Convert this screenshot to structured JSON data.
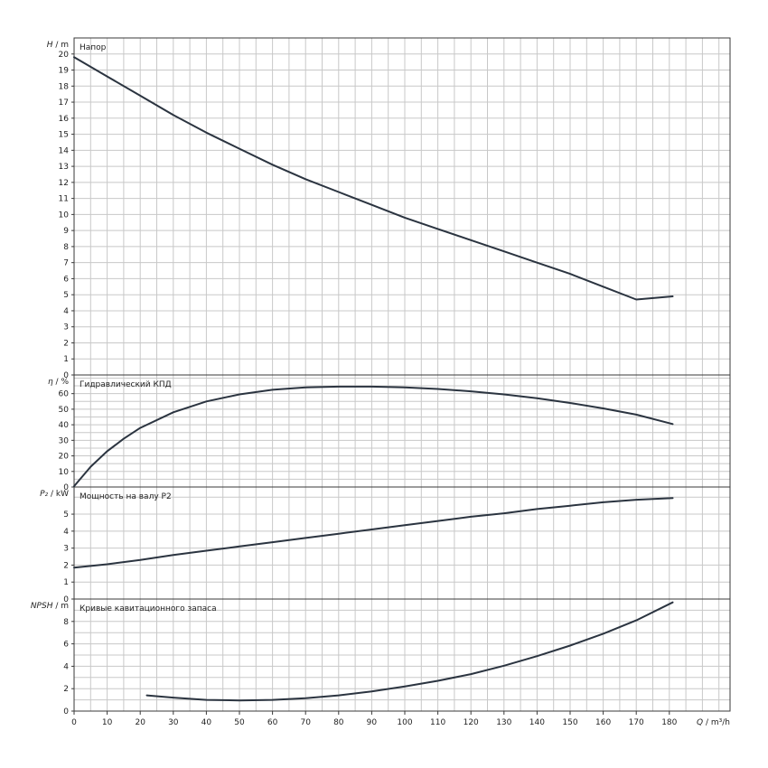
{
  "chart_data": {
    "type": "line",
    "x_axis": {
      "label_var": "Q",
      "label_unit": " / m³/h",
      "range": [
        0,
        180
      ],
      "ticks": [
        0,
        10,
        20,
        30,
        40,
        50,
        60,
        70,
        80,
        90,
        100,
        110,
        120,
        130,
        140,
        150,
        160,
        170,
        180
      ]
    },
    "panels": [
      {
        "id": "head",
        "title": "Напор",
        "ylabel_var": "H",
        "ylabel_unit": " / m",
        "ylim": [
          0,
          21
        ],
        "yticks": [
          0,
          1,
          2,
          3,
          4,
          5,
          6,
          7,
          8,
          9,
          10,
          11,
          12,
          13,
          14,
          15,
          16,
          17,
          18,
          19,
          20
        ],
        "series": [
          {
            "x": [
              0,
              10,
              20,
              30,
              40,
              50,
              60,
              70,
              80,
              90,
              100,
              110,
              120,
              130,
              140,
              150,
              160,
              170,
              181
            ],
            "y": [
              19.8,
              18.6,
              17.4,
              16.2,
              15.1,
              14.1,
              13.1,
              12.2,
              11.4,
              10.6,
              9.8,
              9.1,
              8.4,
              7.7,
              7.0,
              6.3,
              5.5,
              4.7,
              4.9
            ]
          }
        ]
      },
      {
        "id": "efficiency",
        "title": "Гидравлический КПД",
        "ylabel_var": "η",
        "ylabel_unit": " / %",
        "ylim": [
          0,
          72
        ],
        "yticks": [
          0,
          10,
          20,
          30,
          40,
          50,
          60
        ],
        "series": [
          {
            "x": [
              0,
              5,
              10,
              15,
              20,
              30,
              40,
              50,
              60,
              70,
              80,
              90,
              100,
              110,
              120,
              130,
              140,
              150,
              160,
              170,
              181
            ],
            "y": [
              0.5,
              13,
              23,
              31,
              38,
              48,
              55,
              59.5,
              62.5,
              64,
              64.5,
              64.5,
              64,
              63,
              61.5,
              59.5,
              57,
              54,
              50.5,
              46.5,
              40.5
            ]
          }
        ]
      },
      {
        "id": "power",
        "title": "Мощность на валу P2",
        "ylabel_var": "P₂",
        "ylabel_unit": " / kW",
        "ylim": [
          0,
          6.6
        ],
        "yticks": [
          0,
          1,
          2,
          3,
          4,
          5
        ],
        "series": [
          {
            "x": [
              0,
              10,
              20,
              30,
              40,
              50,
              60,
              70,
              80,
              90,
              100,
              110,
              120,
              130,
              140,
              150,
              160,
              170,
              181
            ],
            "y": [
              1.85,
              2.05,
              2.3,
              2.6,
              2.85,
              3.1,
              3.35,
              3.6,
              3.85,
              4.1,
              4.35,
              4.6,
              4.85,
              5.05,
              5.3,
              5.5,
              5.7,
              5.85,
              5.95
            ]
          }
        ]
      },
      {
        "id": "npsh",
        "title": "Кривые кавитационного запаса",
        "ylabel_var": "NPSH",
        "ylabel_unit": " / m",
        "ylim": [
          0,
          10
        ],
        "yticks": [
          0,
          2,
          4,
          6,
          8
        ],
        "series": [
          {
            "x": [
              22,
              30,
              40,
              50,
              60,
              70,
              80,
              90,
              100,
              110,
              120,
              130,
              140,
              150,
              160,
              170,
              181
            ],
            "y": [
              1.4,
              1.2,
              1.0,
              0.95,
              1.0,
              1.15,
              1.4,
              1.75,
              2.2,
              2.7,
              3.3,
              4.05,
              4.9,
              5.85,
              6.9,
              8.1,
              9.7
            ]
          }
        ]
      }
    ]
  }
}
